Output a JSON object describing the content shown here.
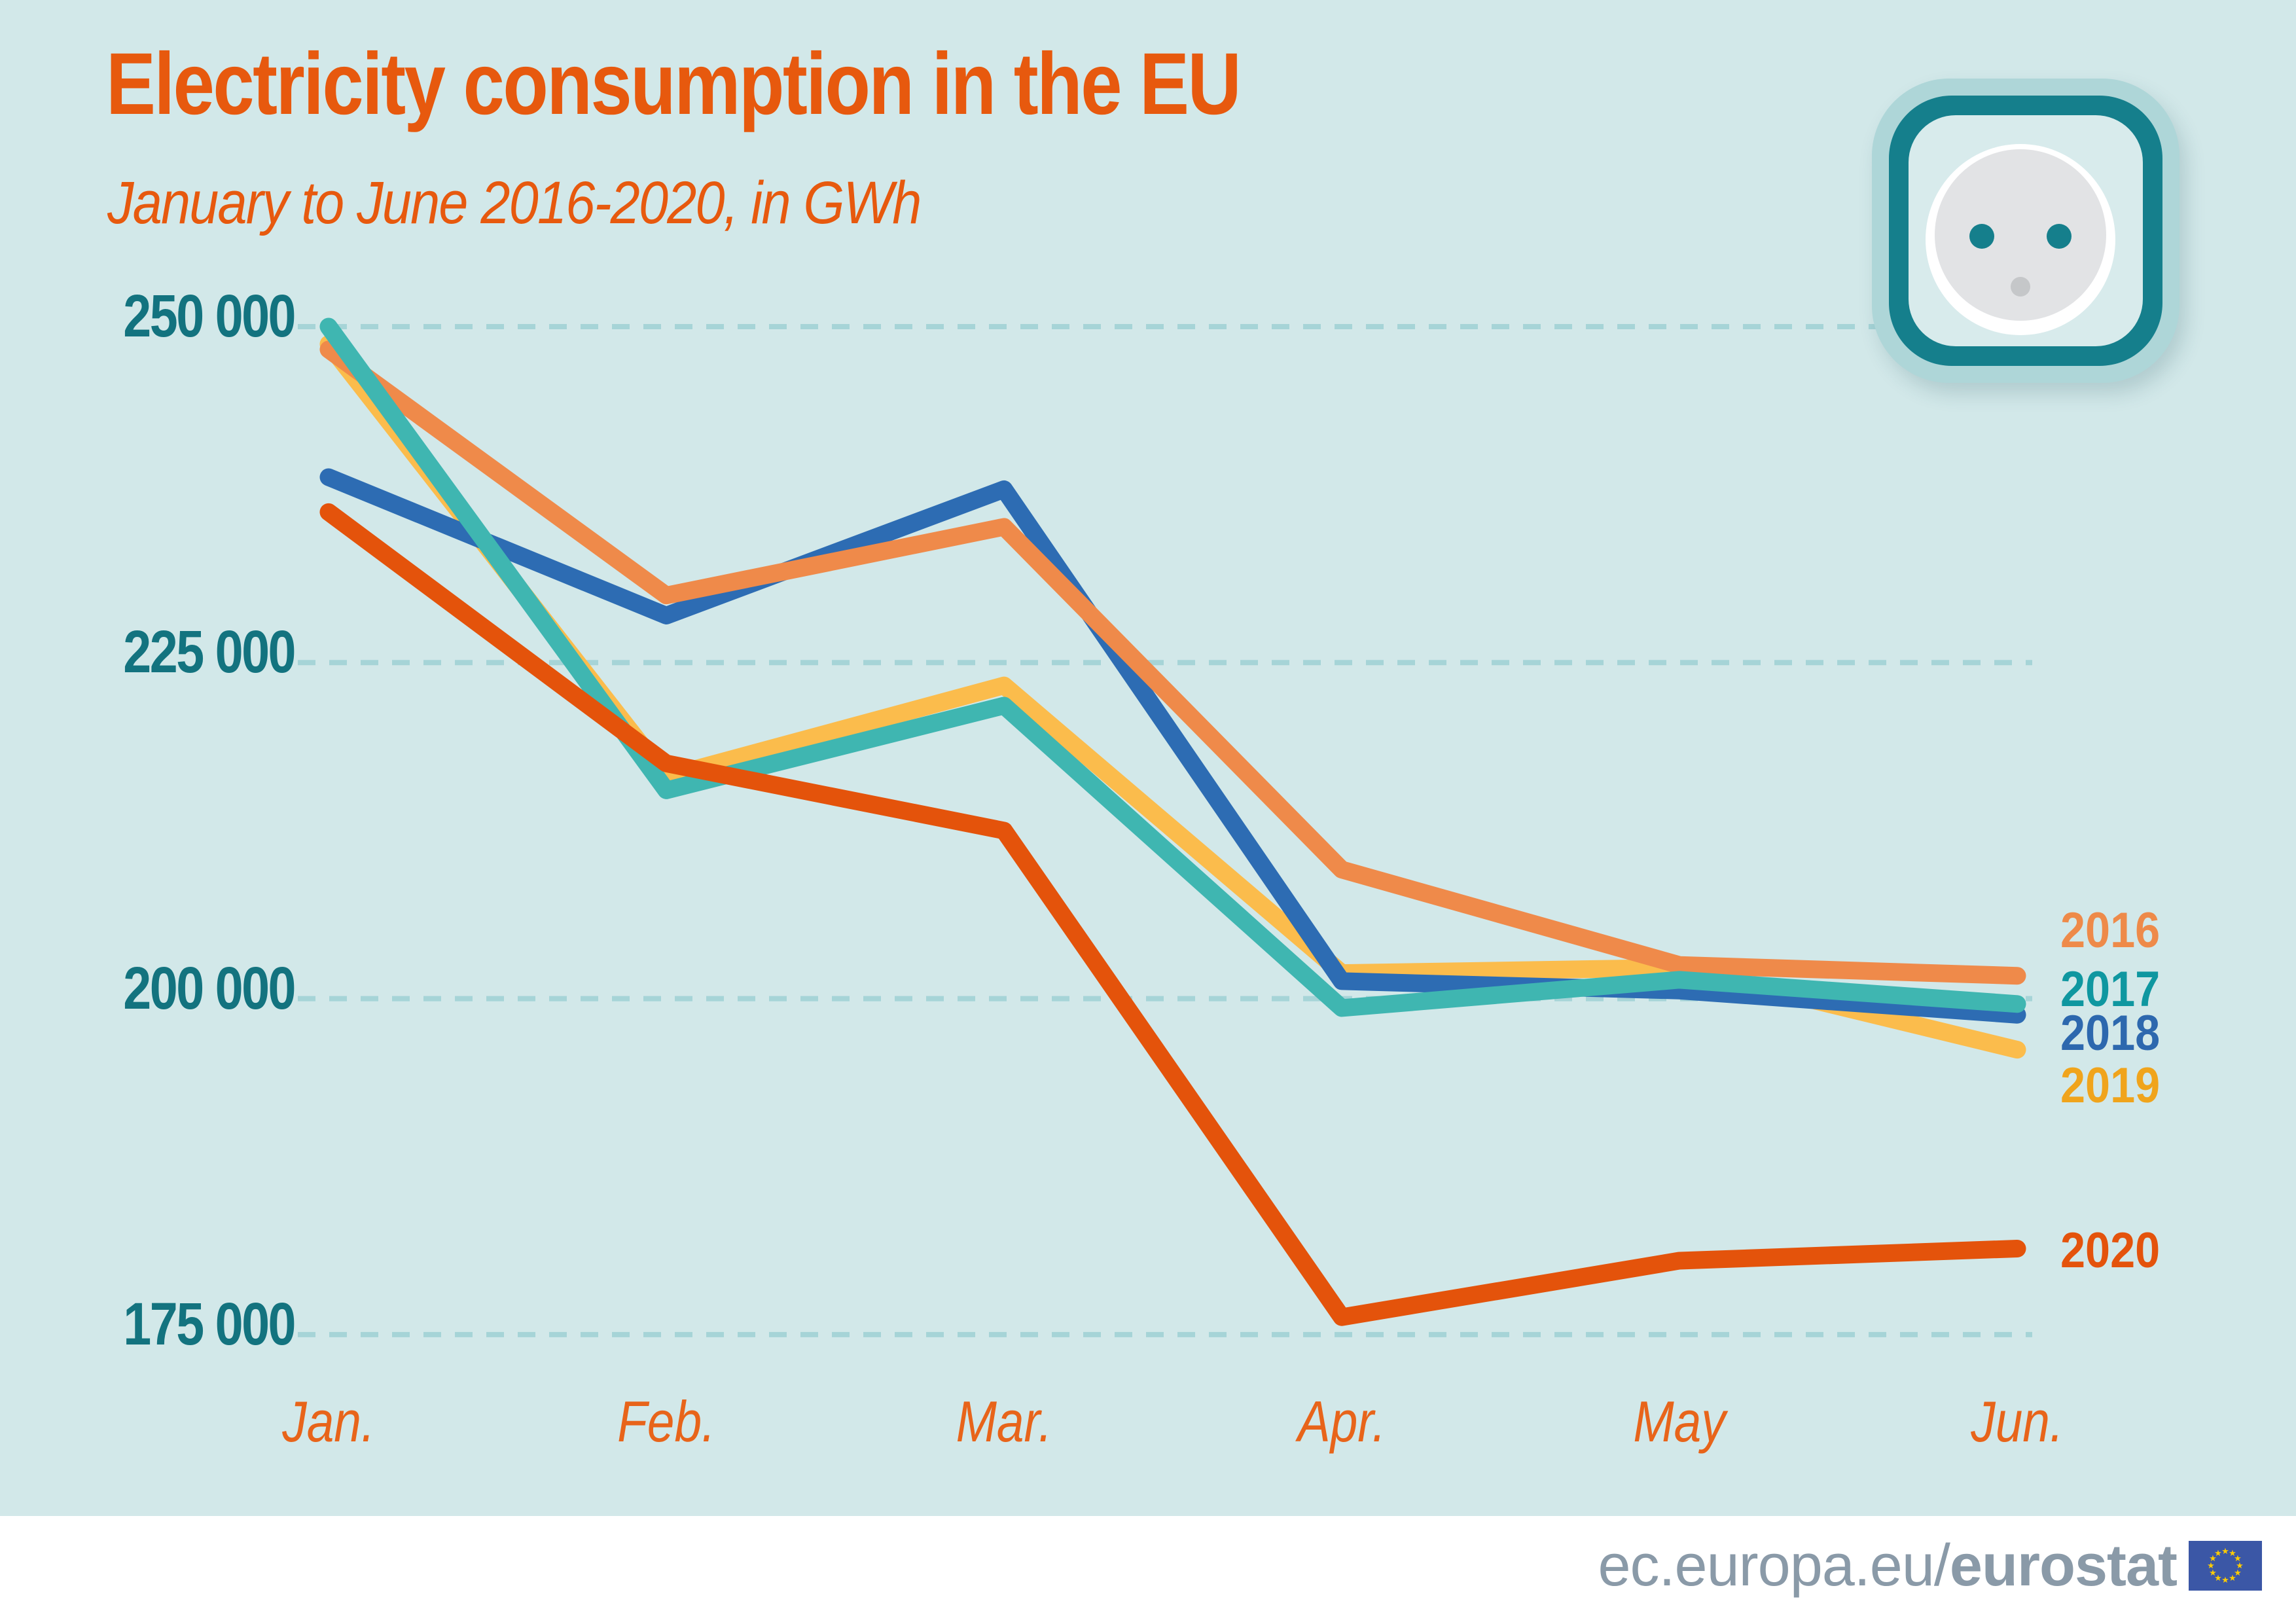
{
  "title": "Electricity consumption in the EU",
  "subtitle": "January to June 2016-2020, in GWh",
  "footer": {
    "url_regular": "ec.europa.eu/",
    "url_bold": "eurostat"
  },
  "icons": {
    "socket-icon": "power-socket",
    "eu-flag-icon": "eu-flag"
  },
  "style_colors": {
    "background": "#d2e8e9",
    "title_orange": "#e7590e",
    "axis_teal": "#13737f",
    "month_orange": "#e8641a",
    "gridline": "#a6d4d7",
    "footer_gray": "#8a9aa8",
    "flag_blue": "#3b57a6",
    "flag_star_yellow": "#ffcc00",
    "socket_teal": "#157f8c"
  },
  "chart_data": {
    "type": "line",
    "title": "Electricity consumption in the EU",
    "subtitle": "January to June 2016-2020, in GWh",
    "unit": "GWh",
    "categories": [
      "Jan.",
      "Feb.",
      "Mar.",
      "Apr.",
      "May",
      "Jun."
    ],
    "yticks": [
      "250 000",
      "225 000",
      "200 000",
      "175 000"
    ],
    "ytick_values": [
      250000,
      225000,
      200000,
      175000
    ],
    "ylim": [
      171000,
      252000
    ],
    "grid": "dashed-horizontal",
    "legend_position": "right",
    "series": [
      {
        "name": "2016",
        "color": "#ef8a4a",
        "label_color": "#ee8a49",
        "values": [
          248300,
          230000,
          235100,
          209600,
          202500,
          201700
        ]
      },
      {
        "name": "2017",
        "color": "#3fb6b1",
        "label_color": "#0f97a0",
        "values": [
          250000,
          215500,
          221800,
          199300,
          201400,
          199600
        ]
      },
      {
        "name": "2018",
        "color": "#2d6cb3",
        "label_color": "#2d68ae",
        "values": [
          238800,
          228500,
          237900,
          201300,
          200600,
          198800
        ]
      },
      {
        "name": "2019",
        "color": "#fbbc4c",
        "label_color": "#f0a41c",
        "values": [
          248700,
          216500,
          223300,
          201900,
          202300,
          196200
        ]
      },
      {
        "name": "2020",
        "color": "#e4530b",
        "label_color": "#e4530c",
        "values": [
          236200,
          217500,
          212500,
          176300,
          180500,
          181400
        ]
      }
    ]
  }
}
